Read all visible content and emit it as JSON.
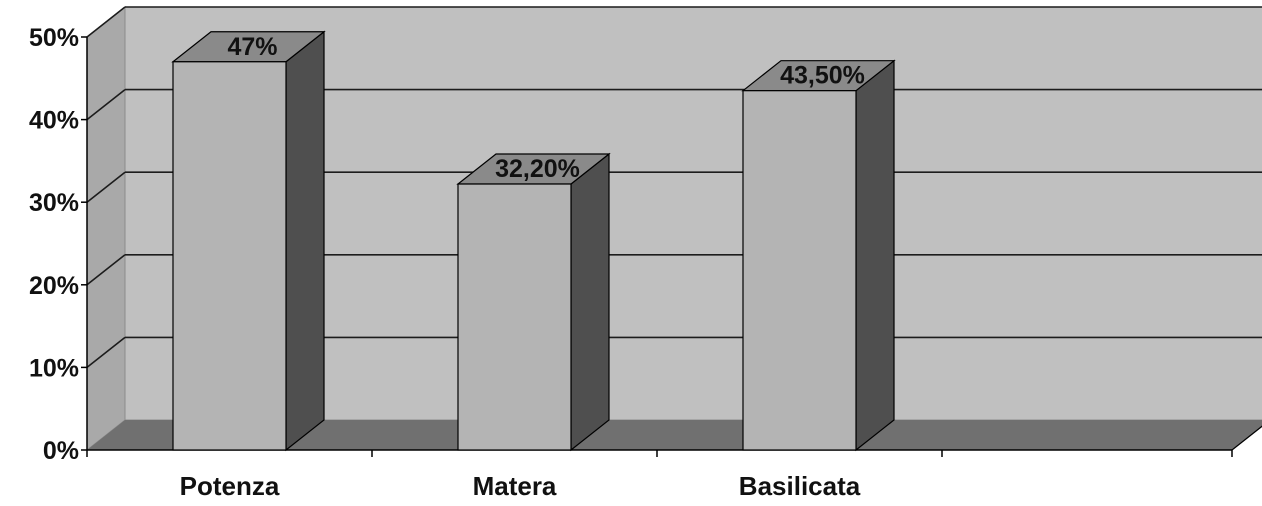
{
  "chart_data": {
    "type": "bar",
    "categories": [
      "Potenza",
      "Matera",
      "Basilicata"
    ],
    "values": [
      47,
      32.2,
      43.5
    ],
    "data_labels": [
      "47%",
      "32,20%",
      "43,50%"
    ],
    "ylim": [
      0,
      50
    ],
    "y_ticks": [
      {
        "value": 0,
        "label": "0%"
      },
      {
        "value": 10,
        "label": "10%"
      },
      {
        "value": 20,
        "label": "20%"
      },
      {
        "value": 30,
        "label": "30%"
      },
      {
        "value": 40,
        "label": "40%"
      },
      {
        "value": 50,
        "label": "50%"
      }
    ],
    "title": "",
    "xlabel": "",
    "ylabel": "",
    "grid": true,
    "legend": "none",
    "colors": {
      "back_wall": "#c0c0c0",
      "side_wall": "#a9a9a9",
      "floor": "#707070",
      "bar_front": "#b4b4b4",
      "bar_side": "#4f4f4f",
      "bar_top": "#8a8a8a",
      "grid": "#1c1c1c"
    }
  }
}
